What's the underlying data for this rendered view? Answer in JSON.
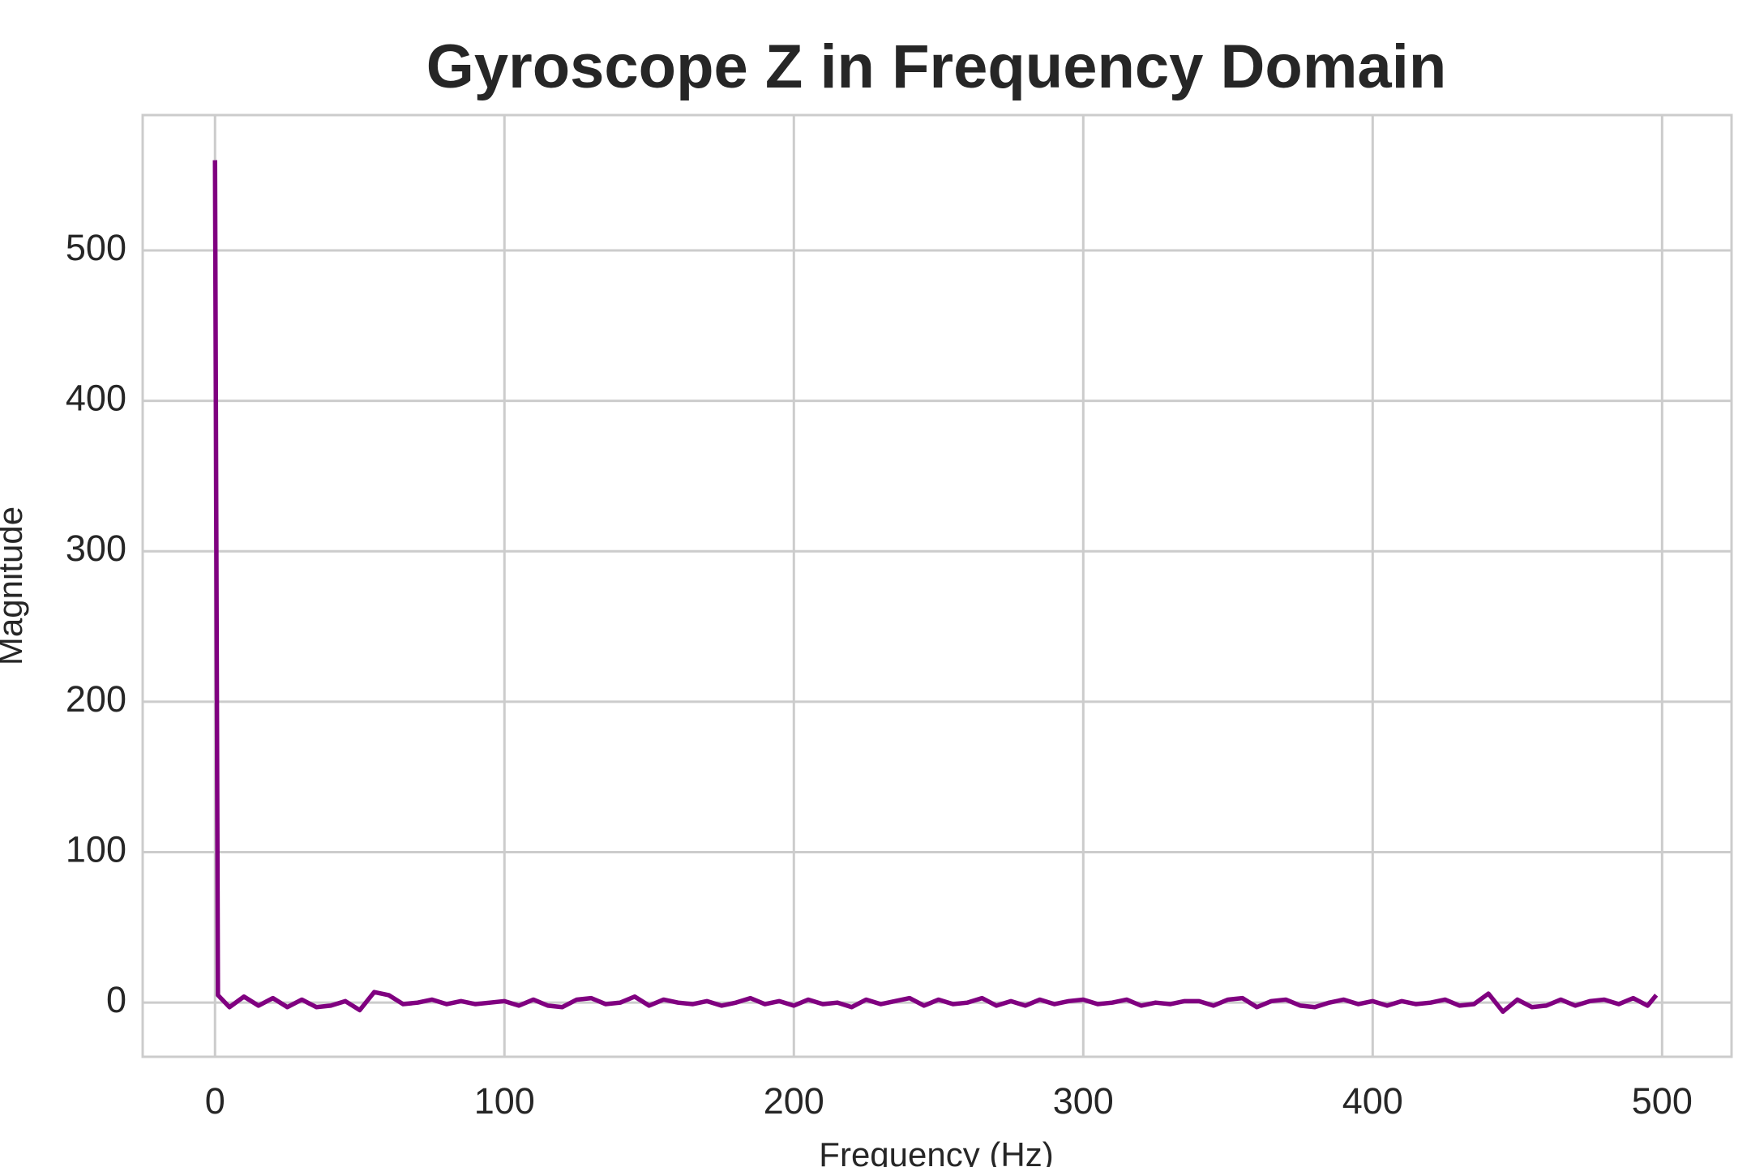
{
  "chart_data": {
    "type": "line",
    "title": "Gyroscope Z in Frequency Domain",
    "x_label": "Frequency (Hz)",
    "y_label": "Magnitude",
    "x": [
      0,
      1,
      2,
      5,
      10,
      15,
      20,
      25,
      30,
      35,
      40,
      45,
      50,
      55,
      60,
      65,
      70,
      75,
      80,
      85,
      90,
      95,
      100,
      105,
      110,
      115,
      120,
      125,
      130,
      135,
      140,
      145,
      150,
      155,
      160,
      165,
      170,
      175,
      180,
      185,
      190,
      195,
      200,
      205,
      210,
      215,
      220,
      225,
      230,
      235,
      240,
      245,
      250,
      255,
      260,
      265,
      270,
      275,
      280,
      285,
      290,
      295,
      300,
      305,
      310,
      315,
      320,
      325,
      330,
      335,
      340,
      345,
      350,
      355,
      360,
      365,
      370,
      375,
      380,
      385,
      390,
      395,
      400,
      405,
      410,
      415,
      420,
      425,
      430,
      435,
      440,
      445,
      450,
      455,
      460,
      465,
      470,
      475,
      480,
      485,
      490,
      495,
      498
    ],
    "series": [
      {
        "name": "Gyroscope Z",
        "color": "#800080",
        "values": [
          560,
          5,
          3,
          -3,
          4,
          -2,
          3,
          -3,
          2,
          -3,
          -2,
          1,
          -5,
          7,
          5,
          -1,
          0,
          2,
          -1,
          1,
          -1,
          0,
          1,
          -2,
          2,
          -2,
          -3,
          2,
          3,
          -1,
          0,
          4,
          -2,
          2,
          0,
          -1,
          1,
          -2,
          0,
          3,
          -1,
          1,
          -2,
          2,
          -1,
          0,
          -3,
          2,
          -1,
          1,
          3,
          -2,
          2,
          -1,
          0,
          3,
          -2,
          1,
          -2,
          2,
          -1,
          1,
          2,
          -1,
          0,
          2,
          -2,
          0,
          -1,
          1,
          1,
          -2,
          2,
          3,
          -3,
          1,
          2,
          -2,
          -3,
          0,
          2,
          -1,
          1,
          -2,
          1,
          -1,
          0,
          2,
          -2,
          -1,
          6,
          -6,
          2,
          -3,
          -2,
          2,
          -2,
          1,
          2,
          -1,
          3,
          -2,
          5
        ]
      }
    ],
    "xlim": [
      -25,
      524
    ],
    "ylim": [
      -36,
      590
    ],
    "xticks": [
      0,
      100,
      200,
      300,
      400,
      500
    ],
    "yticks": [
      0,
      100,
      200,
      300,
      400,
      500
    ],
    "grid": true
  }
}
